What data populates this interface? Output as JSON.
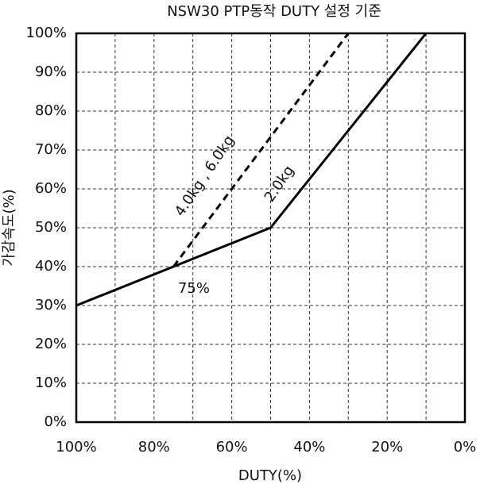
{
  "chart_data": {
    "type": "line",
    "title": "NSW30 PTP동작 DUTY 설정 기준",
    "x_label": "DUTY(%)",
    "y_label": "가감속도(%)",
    "xlim": [
      100,
      0
    ],
    "ylim": [
      0,
      100
    ],
    "xticks": [
      {
        "value": 100,
        "label": "100%"
      },
      {
        "value": 80,
        "label": "80%"
      },
      {
        "value": 60,
        "label": "60%"
      },
      {
        "value": 40,
        "label": "40%"
      },
      {
        "value": 20,
        "label": "20%"
      },
      {
        "value": 0,
        "label": "0%"
      }
    ],
    "xgrid": [
      90,
      80,
      70,
      60,
      50,
      40,
      30,
      20,
      10
    ],
    "yticks": [
      {
        "value": 0,
        "label": "0%"
      },
      {
        "value": 10,
        "label": "10%"
      },
      {
        "value": 20,
        "label": "20%"
      },
      {
        "value": 30,
        "label": "30%"
      },
      {
        "value": 40,
        "label": "40%"
      },
      {
        "value": 50,
        "label": "50%"
      },
      {
        "value": 60,
        "label": "60%"
      },
      {
        "value": 70,
        "label": "70%"
      },
      {
        "value": 80,
        "label": "80%"
      },
      {
        "value": 90,
        "label": "90%"
      },
      {
        "value": 100,
        "label": "100%"
      }
    ],
    "grid": true,
    "series": [
      {
        "name": "2.0kg",
        "color": "#000000",
        "dashed": false,
        "x": [
          100,
          50,
          10
        ],
        "values": [
          30,
          50,
          100
        ]
      },
      {
        "name": "4.0kg , 6.0kg",
        "color": "#000000",
        "dashed": true,
        "x": [
          75,
          30
        ],
        "values": [
          40,
          100
        ]
      }
    ],
    "annotations": [
      {
        "text": "75%"
      }
    ]
  }
}
